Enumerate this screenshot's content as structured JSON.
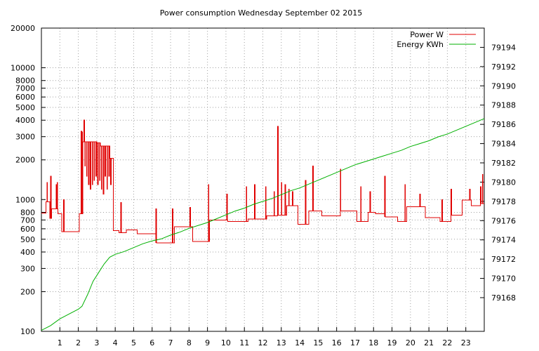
{
  "chart_data": {
    "type": "line",
    "title": "Power consumption Wednesday September 02 2015",
    "grid": true,
    "legend_position": "top-right",
    "x": {
      "range": [
        0,
        24
      ],
      "ticks": [
        1,
        2,
        3,
        4,
        5,
        6,
        7,
        8,
        9,
        10,
        11,
        12,
        13,
        14,
        15,
        16,
        17,
        18,
        19,
        20,
        21,
        22,
        23
      ],
      "tick_labels": [
        "1",
        "2",
        "3",
        "4",
        "5",
        "6",
        "7",
        "8",
        "9",
        "10",
        "11",
        "12",
        "13",
        "14",
        "15",
        "16",
        "17",
        "18",
        "19",
        "20",
        "21",
        "22",
        "23"
      ]
    },
    "y_left": {
      "scale": "log",
      "range": [
        100,
        20000
      ],
      "ticks": [
        100,
        200,
        300,
        400,
        500,
        600,
        700,
        800,
        1000,
        2000,
        3000,
        4000,
        5000,
        6000,
        7000,
        8000,
        10000,
        20000
      ],
      "tick_labels": [
        "100",
        "200",
        "300",
        "400",
        "500",
        "600",
        "700",
        "800",
        "1000",
        "2000",
        "3000",
        "4000",
        "5000",
        "6000",
        "7000",
        "8000",
        "10000",
        "20000"
      ]
    },
    "y_right": {
      "scale": "linear",
      "range": [
        79164.5,
        79196
      ],
      "ticks": [
        79168,
        79170,
        79172,
        79174,
        79176,
        79178,
        79180,
        79182,
        79184,
        79186,
        79188,
        79190,
        79192,
        79194
      ],
      "tick_labels": [
        "79168",
        "79170",
        "79172",
        "79174",
        "79176",
        "79178",
        "79180",
        "79182",
        "79184",
        "79186",
        "79188",
        "79190",
        "79192",
        "79194"
      ]
    },
    "series": [
      {
        "name": "Power W",
        "color": "#e00000",
        "axis": "left",
        "baseline": [
          [
            0,
            790
          ],
          [
            0.25,
            960
          ],
          [
            0.45,
            720
          ],
          [
            0.55,
            850
          ],
          [
            0.9,
            780
          ],
          [
            1.1,
            570
          ],
          [
            1.9,
            570
          ],
          [
            2.05,
            780
          ],
          [
            2.25,
            2750
          ],
          [
            3.0,
            2700
          ],
          [
            3.2,
            2550
          ],
          [
            3.7,
            2050
          ],
          [
            3.9,
            580
          ],
          [
            4.2,
            560
          ],
          [
            4.6,
            590
          ],
          [
            5.2,
            550
          ],
          [
            6.2,
            470
          ],
          [
            7.2,
            620
          ],
          [
            8.2,
            480
          ],
          [
            9.1,
            700
          ],
          [
            10.1,
            680
          ],
          [
            11.2,
            710
          ],
          [
            12.2,
            750
          ],
          [
            12.8,
            760
          ],
          [
            13.3,
            900
          ],
          [
            13.9,
            650
          ],
          [
            14.5,
            820
          ],
          [
            15.2,
            750
          ],
          [
            16.2,
            820
          ],
          [
            17.1,
            680
          ],
          [
            17.7,
            800
          ],
          [
            18.1,
            780
          ],
          [
            18.6,
            740
          ],
          [
            19.3,
            680
          ],
          [
            19.8,
            880
          ],
          [
            20.8,
            730
          ],
          [
            21.6,
            680
          ],
          [
            22.2,
            760
          ],
          [
            22.8,
            990
          ],
          [
            23.3,
            900
          ],
          [
            23.8,
            930
          ],
          [
            24.0,
            930
          ]
        ],
        "spikes": [
          [
            0.3,
            1350
          ],
          [
            0.5,
            1500
          ],
          [
            0.8,
            1300
          ],
          [
            0.85,
            1350
          ],
          [
            1.2,
            1000
          ],
          [
            2.15,
            3300
          ],
          [
            2.2,
            3250
          ],
          [
            2.3,
            4000
          ],
          [
            2.35,
            1800
          ],
          [
            2.45,
            1500
          ],
          [
            2.55,
            1300
          ],
          [
            2.65,
            1200
          ],
          [
            2.75,
            1300
          ],
          [
            2.85,
            1400
          ],
          [
            2.95,
            1500
          ],
          [
            3.05,
            1300
          ],
          [
            3.15,
            1400
          ],
          [
            3.25,
            1200
          ],
          [
            3.35,
            1100
          ],
          [
            3.45,
            1500
          ],
          [
            3.55,
            1200
          ],
          [
            3.65,
            1500
          ],
          [
            3.75,
            1300
          ],
          [
            4.3,
            950
          ],
          [
            6.2,
            850
          ],
          [
            7.1,
            850
          ],
          [
            8.05,
            870
          ],
          [
            9.05,
            1300
          ],
          [
            10.05,
            1100
          ],
          [
            11.1,
            1250
          ],
          [
            11.55,
            1300
          ],
          [
            12.15,
            1250
          ],
          [
            12.6,
            1150
          ],
          [
            12.8,
            3600
          ],
          [
            13.0,
            1350
          ],
          [
            13.2,
            1300
          ],
          [
            13.4,
            1200
          ],
          [
            13.6,
            1150
          ],
          [
            14.3,
            1400
          ],
          [
            14.7,
            1800
          ],
          [
            16.2,
            1700
          ],
          [
            17.3,
            1250
          ],
          [
            17.8,
            1150
          ],
          [
            18.6,
            1500
          ],
          [
            19.7,
            1300
          ],
          [
            20.5,
            1100
          ],
          [
            21.7,
            1000
          ],
          [
            22.2,
            1200
          ],
          [
            23.2,
            1200
          ],
          [
            23.8,
            1250
          ],
          [
            23.9,
            1550
          ]
        ]
      },
      {
        "name": "Energy KWh",
        "color": "#00b000",
        "axis": "right",
        "points": [
          [
            0,
            79164.6
          ],
          [
            0.5,
            79165.1
          ],
          [
            1.0,
            79165.8
          ],
          [
            1.5,
            79166.3
          ],
          [
            2.0,
            79166.8
          ],
          [
            2.2,
            79167.1
          ],
          [
            2.5,
            79168.3
          ],
          [
            2.8,
            79169.7
          ],
          [
            3.1,
            79170.6
          ],
          [
            3.4,
            79171.5
          ],
          [
            3.7,
            79172.2
          ],
          [
            4.0,
            79172.5
          ],
          [
            4.5,
            79172.8
          ],
          [
            5.0,
            79173.2
          ],
          [
            5.5,
            79173.6
          ],
          [
            6.0,
            79173.9
          ],
          [
            6.5,
            79174.1
          ],
          [
            7.0,
            79174.5
          ],
          [
            7.5,
            79174.8
          ],
          [
            8.0,
            79175.2
          ],
          [
            8.5,
            79175.5
          ],
          [
            9.0,
            79175.8
          ],
          [
            9.5,
            79176.2
          ],
          [
            10.0,
            79176.6
          ],
          [
            10.5,
            79177.0
          ],
          [
            11.0,
            79177.3
          ],
          [
            11.5,
            79177.7
          ],
          [
            12.0,
            79178.0
          ],
          [
            12.5,
            79178.3
          ],
          [
            13.0,
            79178.7
          ],
          [
            13.5,
            79179.1
          ],
          [
            14.0,
            79179.4
          ],
          [
            14.5,
            79179.8
          ],
          [
            15.0,
            79180.2
          ],
          [
            15.5,
            79180.6
          ],
          [
            16.0,
            79181.0
          ],
          [
            16.5,
            79181.4
          ],
          [
            17.0,
            79181.8
          ],
          [
            17.5,
            79182.1
          ],
          [
            18.0,
            79182.4
          ],
          [
            18.5,
            79182.7
          ],
          [
            19.0,
            79183.0
          ],
          [
            19.5,
            79183.3
          ],
          [
            20.0,
            79183.7
          ],
          [
            20.5,
            79184.0
          ],
          [
            21.0,
            79184.3
          ],
          [
            21.5,
            79184.7
          ],
          [
            22.0,
            79185.0
          ],
          [
            22.5,
            79185.4
          ],
          [
            23.0,
            79185.8
          ],
          [
            23.5,
            79186.2
          ],
          [
            24.0,
            79186.6
          ]
        ]
      }
    ]
  }
}
